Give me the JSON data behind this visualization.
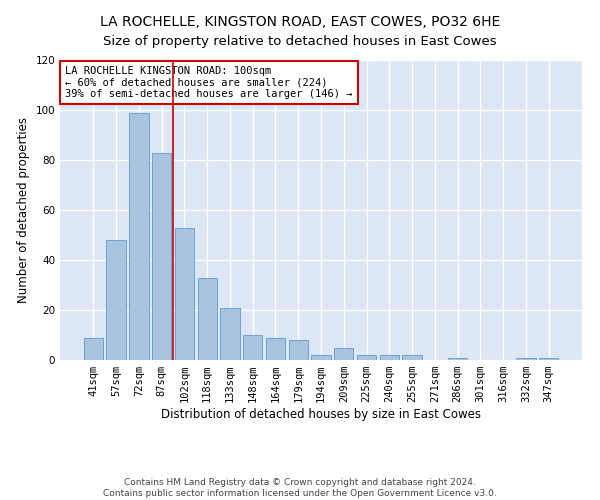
{
  "title": "LA ROCHELLE, KINGSTON ROAD, EAST COWES, PO32 6HE",
  "subtitle": "Size of property relative to detached houses in East Cowes",
  "xlabel": "Distribution of detached houses by size in East Cowes",
  "ylabel": "Number of detached properties",
  "categories": [
    "41sqm",
    "57sqm",
    "72sqm",
    "87sqm",
    "102sqm",
    "118sqm",
    "133sqm",
    "148sqm",
    "164sqm",
    "179sqm",
    "194sqm",
    "209sqm",
    "225sqm",
    "240sqm",
    "255sqm",
    "271sqm",
    "286sqm",
    "301sqm",
    "316sqm",
    "332sqm",
    "347sqm"
  ],
  "values": [
    9,
    48,
    99,
    83,
    53,
    33,
    21,
    10,
    9,
    8,
    2,
    5,
    2,
    2,
    2,
    0,
    1,
    0,
    0,
    1,
    1
  ],
  "bar_color": "#aac4e0",
  "bar_edge_color": "#5b9bd5",
  "vline_x_index": 4,
  "vline_color": "#cc0000",
  "annotation_box_text": "LA ROCHELLE KINGSTON ROAD: 100sqm\n← 60% of detached houses are smaller (224)\n39% of semi-detached houses are larger (146) →",
  "annotation_box_color": "#cc0000",
  "ylim": [
    0,
    120
  ],
  "yticks": [
    0,
    20,
    40,
    60,
    80,
    100,
    120
  ],
  "bg_color": "#dce6f5",
  "grid_color": "#ffffff",
  "title_fontsize": 10,
  "xlabel_fontsize": 8.5,
  "ylabel_fontsize": 8.5,
  "tick_fontsize": 7.5,
  "annotation_fontsize": 7.5,
  "footer_text": "Contains HM Land Registry data © Crown copyright and database right 2024.\nContains public sector information licensed under the Open Government Licence v3.0."
}
